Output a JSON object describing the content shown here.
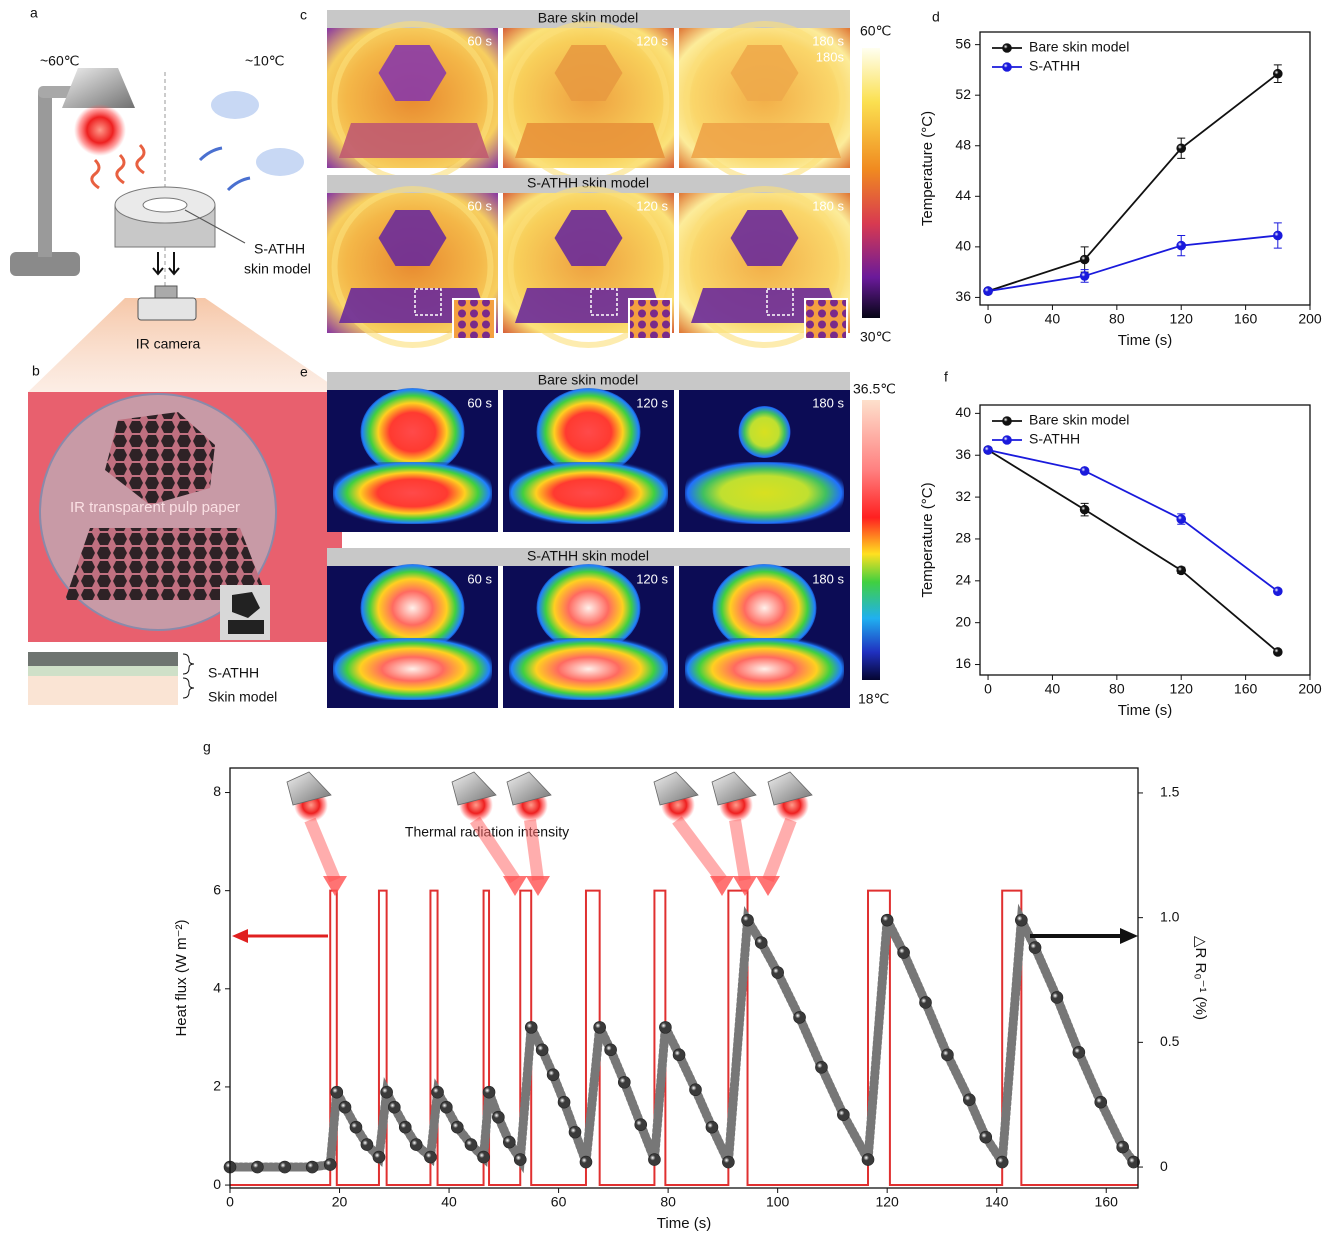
{
  "panel_labels": [
    "a",
    "b",
    "c",
    "d",
    "e",
    "f",
    "g"
  ],
  "diagram_a": {
    "lamp_temp": "~60℃",
    "cold_temp": "~10℃",
    "sample": "S-ATHH",
    "sample_line2": "skin model",
    "camera": "IR camera"
  },
  "photo_b": {
    "label": "IR transparent pulp paper",
    "layer1": "S-ATHH",
    "layer2": "Skin model"
  },
  "thermal_c": {
    "rows": [
      {
        "title": "Bare skin model",
        "times": [
          "60 s",
          "120 s",
          "180 s"
        ]
      },
      {
        "title": "S-ATHH skin model",
        "times": [
          "60 s",
          "120 s",
          "180 s"
        ]
      }
    ],
    "extra_time": "180s",
    "scale_max": "60℃",
    "scale_min": "30℃"
  },
  "thermal_e": {
    "rows": [
      {
        "title": "Bare skin model",
        "times": [
          "60 s",
          "120 s",
          "180 s"
        ]
      },
      {
        "title": "S-ATHH skin model",
        "times": [
          "60 s",
          "120 s",
          "180 s"
        ]
      }
    ],
    "scale_max": "36.5℃",
    "scale_min": "18℃"
  },
  "chart_data": [
    {
      "type": "line",
      "x": [
        0,
        60,
        120,
        180
      ],
      "xlim": [
        -5,
        200
      ],
      "xticks": [
        0,
        40,
        80,
        120,
        160,
        200
      ],
      "ylim": [
        35.4,
        57
      ],
      "yticks": [
        36,
        40,
        44,
        48,
        52,
        56
      ],
      "x_label": "Time (s)",
      "y_label": "Temperature (°C)",
      "legend": "upper left",
      "series": [
        {
          "name": "Bare skin model",
          "color": "#111111",
          "values": [
            36.5,
            39.0,
            47.8,
            53.7
          ],
          "errors": [
            0.2,
            1.0,
            0.8,
            0.7
          ]
        },
        {
          "name": "S-ATHH",
          "color": "#1a1adc",
          "values": [
            36.5,
            37.7,
            40.1,
            40.9
          ],
          "errors": [
            0.2,
            0.5,
            0.8,
            1.0
          ]
        }
      ]
    },
    {
      "type": "line",
      "x": [
        0,
        60,
        120,
        180
      ],
      "xlim": [
        -5,
        200
      ],
      "xticks": [
        0,
        40,
        80,
        120,
        160,
        200
      ],
      "ylim": [
        15,
        40.8
      ],
      "yticks": [
        16,
        20,
        24,
        28,
        32,
        36,
        40
      ],
      "x_label": "Time (s)",
      "y_label": "Temperature (°C)",
      "legend": "upper left",
      "series": [
        {
          "name": "Bare skin model",
          "color": "#111111",
          "values": [
            36.5,
            30.8,
            25.0,
            17.2
          ],
          "errors": [
            0.2,
            0.6,
            0.3,
            0.2
          ]
        },
        {
          "name": "S-ATHH",
          "color": "#1a1adc",
          "values": [
            36.5,
            34.5,
            29.9,
            23.0
          ],
          "errors": [
            0.2,
            0.2,
            0.5,
            0.2
          ]
        }
      ]
    },
    {
      "type": "combo",
      "annotation": "Thermal radiation intensity",
      "xlim": [
        0,
        165.8
      ],
      "xticks": [
        0,
        20,
        40,
        60,
        80,
        100,
        120,
        140,
        160
      ],
      "ylim": [
        -0.06,
        8.5
      ],
      "yticks": [
        0,
        2,
        4,
        6,
        8
      ],
      "y2lim": [
        -0.084,
        1.6
      ],
      "y2ticks": [
        0,
        0.5,
        {
          "value": 1,
          "label": "1.0"
        },
        1.5
      ],
      "x_label": "Time (s)",
      "y_label": "Heat flux (W m⁻²)",
      "y2_label": "△R R₀⁻¹ (%)",
      "series": [
        {
          "type": "line",
          "color": "#e03030",
          "x": [
            0,
            18.3,
            18.3,
            19.5,
            19.5,
            27.2,
            27.2,
            28.6,
            28.6,
            36.6,
            36.6,
            37.9,
            37.9,
            46.3,
            46.3,
            47.3,
            47.3,
            53,
            53,
            55,
            55,
            65,
            65,
            67.5,
            67.5,
            77.5,
            77.5,
            79.5,
            79.5,
            91,
            91,
            94.5,
            94.5,
            116.5,
            116.5,
            120.5,
            120.5,
            141,
            141,
            144.5,
            144.5,
            165.8
          ],
          "values": [
            0,
            0,
            6,
            6,
            0,
            0,
            6,
            6,
            0,
            0,
            6,
            6,
            0,
            0,
            6,
            6,
            0,
            0,
            6,
            6,
            0,
            0,
            6,
            6,
            0,
            0,
            6,
            6,
            0,
            0,
            6,
            6,
            0,
            0,
            6,
            6,
            0,
            0,
            6,
            6,
            0,
            0
          ]
        },
        {
          "type": "scatter",
          "axis": "y2",
          "color": "#3a3a3a",
          "x": [
            0,
            5,
            10,
            15,
            18.3,
            19.5,
            21,
            23,
            25,
            27.2,
            28.6,
            30,
            32,
            34,
            36.6,
            37.9,
            39.5,
            41.5,
            44,
            46.3,
            47.3,
            49,
            51,
            53,
            55,
            57,
            59,
            61,
            63,
            65,
            67.5,
            69.5,
            72,
            75,
            77.5,
            79.5,
            82,
            85,
            88,
            91,
            94.5,
            97,
            100,
            104,
            108,
            112,
            116.5,
            120,
            123,
            127,
            131,
            135,
            138,
            141,
            144.5,
            147,
            151,
            155,
            159,
            163,
            165
          ],
          "values": [
            0,
            0,
            0,
            0,
            0.01,
            0.3,
            0.24,
            0.16,
            0.09,
            0.04,
            0.3,
            0.24,
            0.16,
            0.09,
            0.04,
            0.3,
            0.24,
            0.16,
            0.09,
            0.04,
            0.3,
            0.2,
            0.1,
            0.03,
            0.56,
            0.47,
            0.37,
            0.26,
            0.14,
            0.02,
            0.56,
            0.47,
            0.34,
            0.17,
            0.03,
            0.56,
            0.45,
            0.31,
            0.16,
            0.02,
            0.99,
            0.9,
            0.78,
            0.6,
            0.4,
            0.21,
            0.03,
            0.99,
            0.86,
            0.66,
            0.45,
            0.27,
            0.12,
            0.02,
            0.99,
            0.88,
            0.68,
            0.46,
            0.26,
            0.08,
            0.02
          ]
        }
      ]
    }
  ]
}
